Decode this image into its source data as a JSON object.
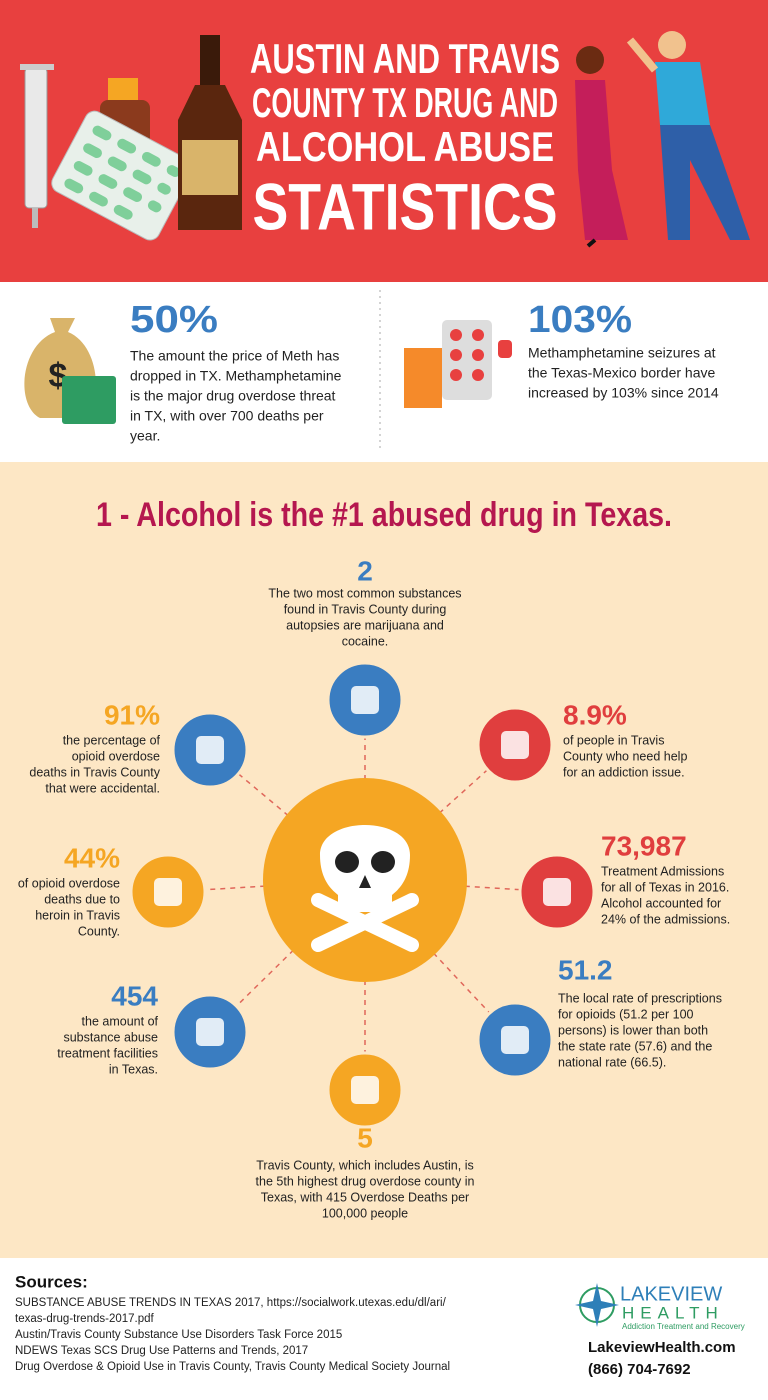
{
  "header": {
    "title_lines": [
      "AUSTIN AND TRAVIS",
      "COUNTY TX DRUG AND",
      "ALCOHOL ABUSE",
      "STATISTICS"
    ]
  },
  "top_stats": [
    {
      "value": "50%",
      "lines": [
        "The amount the price of Meth has",
        "dropped in TX. Methamphetamine",
        "is the major drug overdose threat",
        "in TX, with over 700 deaths per",
        "year."
      ]
    },
    {
      "value": "103%",
      "lines": [
        "Methamphetamine seizures at",
        "the Texas-Mexico border have",
        "increased by 103% since 2014"
      ]
    }
  ],
  "section": {
    "heading": "1 - Alcohol is the #1 abused drug in Texas.",
    "stats": [
      {
        "value": "2",
        "lines": [
          "The two most common substances",
          "found in Travis County during",
          "autopsies are marijuana and",
          "cocaine."
        ]
      },
      {
        "value": "91%",
        "lines": [
          "the percentage of",
          "opioid overdose",
          "deaths in Travis County",
          "that were accidental."
        ]
      },
      {
        "value": "8.9%",
        "lines": [
          "of people in Travis",
          "County who need help",
          "for an addiction issue."
        ]
      },
      {
        "value": "44%",
        "lines": [
          "of opioid overdose",
          "deaths due to",
          "heroin in Travis",
          "County."
        ]
      },
      {
        "value": "73,987",
        "lines": [
          "Treatment Admissions",
          "for all of Texas in 2016.",
          "Alcohol accounted for",
          "24% of the admissions."
        ]
      },
      {
        "value": "454",
        "lines": [
          "the amount of",
          "substance abuse",
          "treatment facilities",
          "in Texas."
        ]
      },
      {
        "value": "51.2",
        "lines": [
          "The local rate of prescriptions",
          "for opioids (51.2 per 100",
          "persons) is lower than both",
          "the state rate (57.6) and the",
          "national rate (66.5)."
        ]
      },
      {
        "value": "5",
        "lines": [
          "Travis County, which includes Austin, is",
          "the 5th highest drug overdose county in",
          "Texas, with 415 Overdose Deaths per",
          "100,000 people"
        ]
      }
    ]
  },
  "sources": {
    "heading": "Sources:",
    "lines": [
      "SUBSTANCE ABUSE TRENDS IN TEXAS 2017, https://socialwork.utexas.edu/dl/ari/",
      "texas-drug-trends-2017.pdf",
      "Austin/Travis County Substance Use Disorders Task Force 2015",
      "NDEWS Texas SCS Drug Use Patterns and Trends, 2017",
      "Drug Overdose & Opioid Use in Travis County, Travis County Medical Society Journal"
    ]
  },
  "logo": {
    "name": "LAKEVIEW",
    "sub": "HEALTH",
    "tagline": "Addiction Treatment and Recovery"
  },
  "contact": {
    "website": "LakeviewHealth.com",
    "phone": "(866) 704-7692"
  }
}
